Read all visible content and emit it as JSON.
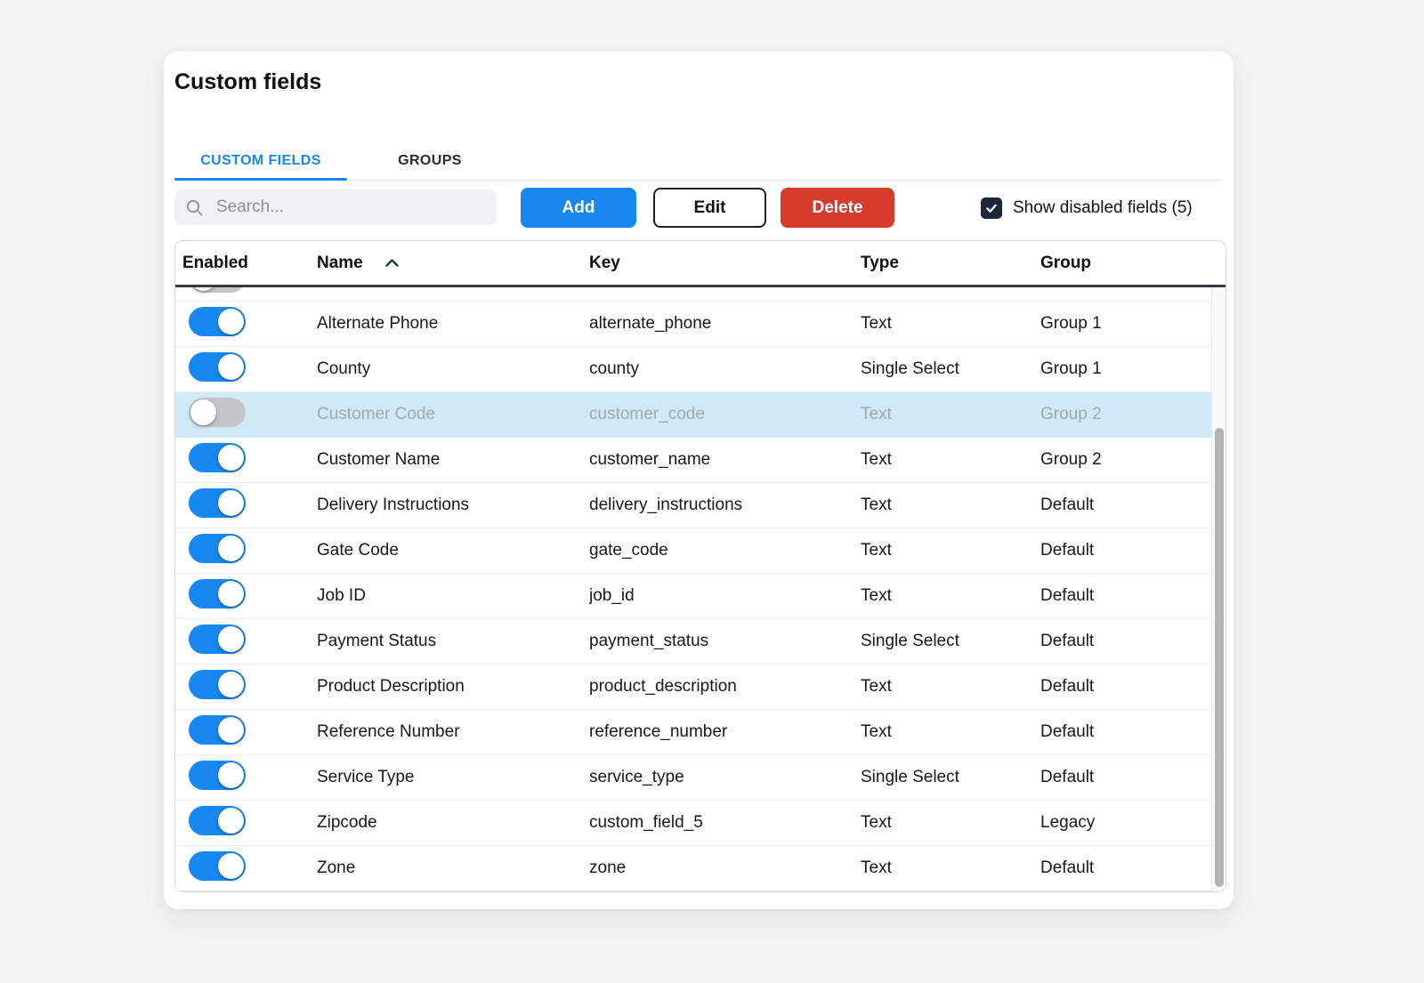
{
  "page": {
    "title": "Custom fields"
  },
  "tabs": [
    {
      "label": "CUSTOM FIELDS",
      "active": true
    },
    {
      "label": "GROUPS",
      "active": false
    }
  ],
  "toolbar": {
    "search_placeholder": "Search...",
    "add_label": "Add",
    "edit_label": "Edit",
    "delete_label": "Delete",
    "show_disabled_label": "Show disabled fields (5)",
    "show_disabled_checked": true
  },
  "table": {
    "headers": {
      "enabled": "Enabled",
      "name": "Name",
      "key": "Key",
      "type": "Type",
      "group": "Group"
    },
    "sort": {
      "column": "Name",
      "direction": "ascending"
    },
    "partial_row_top": {
      "enabled": false
    },
    "rows": [
      {
        "enabled": true,
        "highlighted": false,
        "name": "Alternate Phone",
        "key": "alternate_phone",
        "type": "Text",
        "group": "Group 1"
      },
      {
        "enabled": true,
        "highlighted": false,
        "name": "County",
        "key": "county",
        "type": "Single Select",
        "group": "Group 1"
      },
      {
        "enabled": false,
        "highlighted": true,
        "name": "Customer Code",
        "key": "customer_code",
        "type": "Text",
        "group": "Group 2"
      },
      {
        "enabled": true,
        "highlighted": false,
        "name": "Customer Name",
        "key": "customer_name",
        "type": "Text",
        "group": "Group 2"
      },
      {
        "enabled": true,
        "highlighted": false,
        "name": "Delivery Instructions",
        "key": "delivery_instructions",
        "type": "Text",
        "group": "Default"
      },
      {
        "enabled": true,
        "highlighted": false,
        "name": "Gate Code",
        "key": "gate_code",
        "type": "Text",
        "group": "Default"
      },
      {
        "enabled": true,
        "highlighted": false,
        "name": "Job ID",
        "key": "job_id",
        "type": "Text",
        "group": "Default"
      },
      {
        "enabled": true,
        "highlighted": false,
        "name": "Payment Status",
        "key": "payment_status",
        "type": "Single Select",
        "group": "Default"
      },
      {
        "enabled": true,
        "highlighted": false,
        "name": "Product Description",
        "key": "product_description",
        "type": "Text",
        "group": "Default"
      },
      {
        "enabled": true,
        "highlighted": false,
        "name": "Reference Number",
        "key": "reference_number",
        "type": "Text",
        "group": "Default"
      },
      {
        "enabled": true,
        "highlighted": false,
        "name": "Service Type",
        "key": "service_type",
        "type": "Single Select",
        "group": "Default"
      },
      {
        "enabled": true,
        "highlighted": false,
        "name": "Zipcode",
        "key": "custom_field_5",
        "type": "Text",
        "group": "Legacy"
      },
      {
        "enabled": true,
        "highlighted": false,
        "name": "Zone",
        "key": "zone",
        "type": "Text",
        "group": "Default"
      }
    ]
  },
  "colors": {
    "accent_blue": "#1787f2",
    "danger_red": "#d83b2b",
    "checkbox_navy": "#1d2739",
    "row_highlight_blue": "#cfe9f7",
    "disabled_text": "#a2a8ae",
    "page_background": "#f4f4f5"
  }
}
